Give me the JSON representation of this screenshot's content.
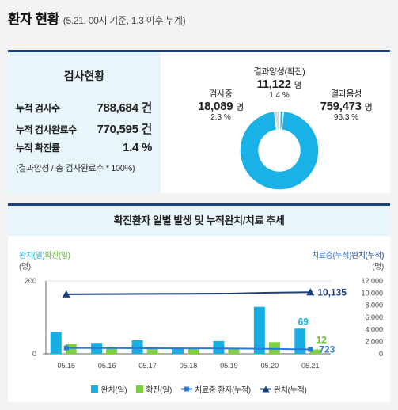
{
  "header": {
    "title": "환자 현황",
    "subtitle": "(5.21. 00시 기준, 1.3 이후 누계)"
  },
  "test_status": {
    "title": "검사현황",
    "rows": [
      {
        "label": "누적 검사수",
        "value": "788,684 건"
      },
      {
        "label": "누적 검사완료수",
        "value": "770,595 건"
      },
      {
        "label": "누적 확진률",
        "value": "1.4 %"
      }
    ],
    "note": "(결과양성 / 총 검사완료수 * 100%)"
  },
  "donut": {
    "positive": {
      "name": "결과양성(확진)",
      "value": "11,122",
      "unit": "명",
      "percent": "1.4 %"
    },
    "testing": {
      "name": "검사중",
      "value": "18,089",
      "unit": "명",
      "percent": "2.3 %"
    },
    "negative": {
      "name": "결과음성",
      "value": "759,473",
      "unit": "명",
      "percent": "96.3 %"
    },
    "colors": {
      "negative": "#1ab2e6",
      "testing": "#d8d8d8",
      "positive": "#1ab2e6"
    }
  },
  "trend": {
    "title": "확진환자 일별 발생 및 누적완치/치료 추세",
    "left_axis_title_a": "완치(일)",
    "left_axis_title_b": "확진(일)",
    "left_axis_unit": "(명)",
    "right_axis_title_a": "치료중(누적)",
    "right_axis_title_b": "완치(누적)",
    "right_axis_unit": "(명)",
    "legend": {
      "recovered_daily": "완치(일)",
      "confirmed_daily": "확진(일)",
      "in_treatment": "치료중 환자(누적)",
      "recovered_cum": "완치(누적)"
    }
  },
  "chart_data": {
    "type": "bar",
    "categories": [
      "05.15",
      "05.16",
      "05.17",
      "05.18",
      "05.19",
      "05.20",
      "05.21"
    ],
    "left_ylim": [
      0,
      200
    ],
    "left_ticks": [
      "200",
      "0"
    ],
    "right_ylim": [
      0,
      12000
    ],
    "right_ticks": [
      "12,000",
      "10,000",
      "8,000",
      "6,000",
      "4,000",
      "2,000",
      "0"
    ],
    "series": [
      {
        "name": "완치(일)",
        "type": "bar",
        "axis": "left",
        "color": "#19aee3",
        "values": [
          60,
          30,
          37,
          17,
          35,
          129,
          69
        ]
      },
      {
        "name": "확진(일)",
        "type": "bar",
        "axis": "left",
        "color": "#7ed03f",
        "values": [
          27,
          19,
          15,
          13,
          15,
          32,
          12
        ]
      },
      {
        "name": "치료중 환자(누적)",
        "type": "line",
        "axis": "right",
        "color": "#2b78d8",
        "values": [
          960,
          940,
          920,
          900,
          880,
          810,
          723
        ]
      },
      {
        "name": "완치(누적)",
        "type": "line",
        "axis": "right",
        "color": "#1d3f7c",
        "values": [
          9800,
          9830,
          9860,
          9880,
          9910,
          10060,
          10135
        ]
      }
    ],
    "data_labels": {
      "recovered_daily_last": "69",
      "confirmed_daily_last": "12",
      "in_treatment_last": "723",
      "recovered_cum_last": "10,135"
    }
  }
}
